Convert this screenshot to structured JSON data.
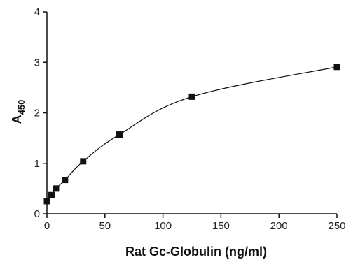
{
  "chart_data": {
    "type": "scatter",
    "title": "",
    "xlabel": "Rat Gc-Globulin (ng/ml)",
    "ylabel": {
      "main": "A",
      "sub": "450"
    },
    "xlim": [
      0,
      250
    ],
    "ylim": [
      0,
      4
    ],
    "xticks": [
      0,
      50,
      100,
      150,
      200,
      250
    ],
    "yticks": [
      0,
      1,
      2,
      3,
      4
    ],
    "grid": false,
    "legend": "none",
    "marker": "square",
    "fit_curve": true,
    "colors": {
      "marker": "#111111",
      "line": "#111111",
      "axis": "#111111"
    },
    "series": [
      {
        "x": [
          0,
          3.9,
          7.8,
          15.6,
          31.25,
          62.5,
          125,
          250
        ],
        "y": [
          0.25,
          0.37,
          0.5,
          0.67,
          1.04,
          1.57,
          2.32,
          2.91
        ]
      }
    ]
  }
}
